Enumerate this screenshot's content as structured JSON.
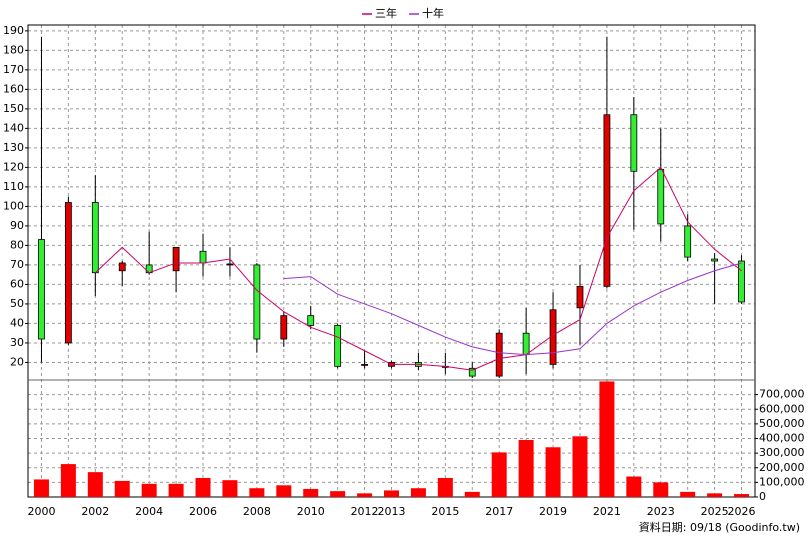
{
  "chart_data": {
    "type": "candlestick",
    "categories": [
      "2000",
      null,
      "2002",
      null,
      "2004",
      null,
      "2006",
      null,
      "2008",
      null,
      "2010",
      null,
      "2012",
      "2013",
      null,
      "2015",
      null,
      "2017",
      null,
      "2019",
      null,
      "2021",
      null,
      "2023",
      null,
      "2025",
      "2026"
    ],
    "open": [
      83,
      30,
      102,
      67,
      70,
      67,
      77,
      70,
      70,
      32,
      44,
      39,
      19,
      18,
      20,
      18,
      17,
      13,
      35,
      19,
      48,
      59,
      147,
      119,
      90,
      73,
      72
    ],
    "high": [
      187,
      105,
      116,
      72,
      87,
      79,
      86,
      79,
      71,
      46,
      49,
      40,
      26,
      21,
      25,
      25,
      20,
      37,
      48,
      56,
      70,
      187,
      156,
      140,
      96,
      76,
      75
    ],
    "low": [
      20,
      29,
      54,
      59,
      65,
      56,
      64,
      64,
      25,
      28,
      37,
      17,
      17,
      17,
      16,
      14,
      12,
      12,
      14,
      17,
      29,
      58,
      88,
      82,
      72,
      50,
      50
    ],
    "close": [
      32,
      102,
      66,
      71,
      66,
      79,
      71,
      70.5,
      32,
      44,
      39,
      18,
      19,
      20,
      18,
      18,
      13,
      35,
      24,
      47,
      59,
      147,
      118,
      91,
      74,
      72,
      51
    ],
    "up_color": "#e00000",
    "down_color": "#33ee33",
    "series": [
      {
        "name": "三年",
        "color": "#cc0066",
        "values": [
          null,
          null,
          66,
          79,
          66,
          71,
          71,
          73,
          57,
          46,
          38,
          33,
          26,
          19,
          19,
          18,
          16,
          22,
          24,
          34,
          42,
          84,
          108,
          120,
          92,
          78,
          67
        ]
      },
      {
        "name": "十年",
        "color": "#9933cc",
        "values": [
          null,
          null,
          null,
          null,
          null,
          null,
          null,
          null,
          null,
          63,
          64,
          55,
          50,
          45,
          39,
          33,
          28,
          25,
          24,
          25,
          27,
          40,
          49,
          56,
          62,
          67,
          71
        ]
      }
    ],
    "volume": {
      "axis": "y2",
      "color": "#ff0000",
      "values": [
        120000,
        225000,
        170000,
        110000,
        90000,
        90000,
        130000,
        115000,
        60000,
        80000,
        55000,
        40000,
        25000,
        45000,
        60000,
        130000,
        35000,
        305000,
        390000,
        340000,
        415000,
        790000,
        140000,
        100000,
        35000,
        25000,
        20000
      ]
    },
    "ylim": [
      11,
      193
    ],
    "yticks": [
      20,
      30,
      40,
      50,
      60,
      70,
      80,
      90,
      100,
      110,
      120,
      130,
      140,
      150,
      160,
      170,
      180,
      190
    ],
    "y2lim": [
      0,
      800000
    ],
    "y2ticks": [
      0,
      {
        "value": 100000,
        "label": "100,000"
      },
      {
        "value": 200000,
        "label": "200,000"
      },
      {
        "value": 300000,
        "label": "300,000"
      },
      {
        "value": 400000,
        "label": "400,000"
      },
      {
        "value": 500000,
        "label": "500,000"
      },
      {
        "value": 600000,
        "label": "600,000"
      },
      {
        "value": 700000,
        "label": "700,000"
      }
    ],
    "grid": true,
    "legend": "top",
    "footnote": "資料日期: 09/18 (Goodinfo.tw)"
  }
}
